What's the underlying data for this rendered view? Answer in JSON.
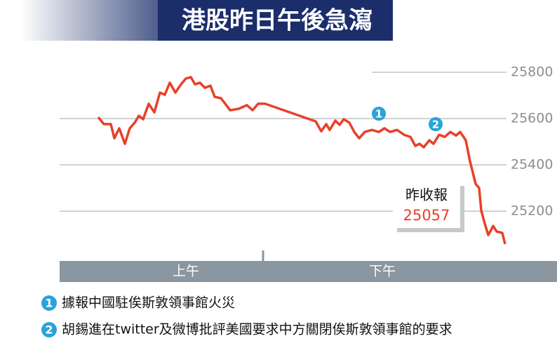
{
  "chart_data": {
    "type": "line",
    "title": "港股昨日午後急瀉",
    "x": [
      0,
      8,
      18,
      23,
      30,
      38,
      45,
      52,
      58,
      64,
      72,
      80,
      88,
      95,
      102,
      110,
      118,
      125,
      132,
      138,
      145,
      152,
      160,
      166,
      175,
      188,
      200,
      212,
      220,
      228,
      238,
      310,
      318,
      325,
      330,
      338,
      344,
      350,
      358,
      365,
      372,
      380,
      390,
      400,
      408,
      416,
      426,
      436,
      445,
      452,
      458,
      464,
      472,
      478,
      486,
      494,
      502,
      510,
      516,
      524,
      530,
      538,
      543,
      546,
      550,
      556,
      563,
      568,
      576,
      580
    ],
    "series": [
      {
        "color": "#e8402a",
        "values": [
          25606,
          25576,
          25576,
          25515,
          25558,
          25491,
          25558,
          25582,
          25612,
          25597,
          25664,
          25627,
          25712,
          25703,
          25755,
          25712,
          25748,
          25773,
          25779,
          25748,
          25755,
          25733,
          25742,
          25694,
          25688,
          25636,
          25642,
          25658,
          25636,
          25664,
          25664,
          25588,
          25545,
          25576,
          25551,
          25591,
          25573,
          25597,
          25582,
          25542,
          25515,
          25542,
          25551,
          25542,
          25558,
          25542,
          25551,
          25530,
          25521,
          25482,
          25491,
          25476,
          25506,
          25491,
          25530,
          25521,
          25542,
          25527,
          25542,
          25506,
          25415,
          25318,
          25300,
          25203,
          25157,
          25097,
          25136,
          25112,
          25106,
          25058
        ]
      }
    ],
    "xlim": [
      0,
      580
    ],
    "ylim": [
      25000,
      25850
    ],
    "yticks": [
      25200,
      25400,
      25600,
      25800
    ],
    "sessions": [
      "上午",
      "下午"
    ],
    "close_label": "昨收報",
    "close_value": 25057,
    "annotations": [
      {
        "label": "1",
        "text": "據報中國駐俟斯敦領事館火災"
      },
      {
        "label": "2",
        "text": "胡錫進在twitter及微博批評美國要求中方關閉俟斯敦領事館的要求"
      }
    ]
  }
}
